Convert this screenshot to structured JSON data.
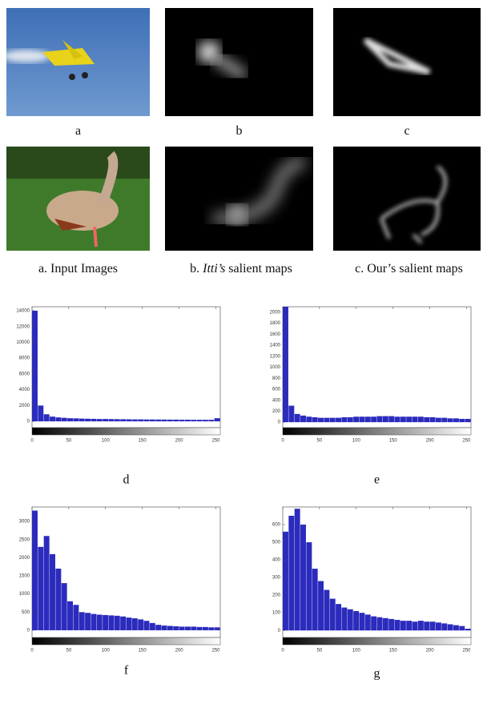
{
  "figure": {
    "row1_labels": [
      "a",
      "b",
      "c"
    ],
    "captions": [
      "a. Input Images",
      "c. Our’s salient maps"
    ],
    "itti_caption": {
      "prefix": "b. ",
      "emphasis": "Itti’s",
      "suffix": " salient maps"
    }
  },
  "chart_data": [
    {
      "type": "histogram",
      "caption": "d",
      "color": "#2b2bbd",
      "xlim": [
        0,
        256
      ],
      "xticks": [
        0,
        50,
        100,
        150,
        200,
        250
      ],
      "ylim": [
        -800,
        14500
      ],
      "yticks": [
        0,
        2000,
        4000,
        6000,
        8000,
        10000,
        12000,
        14000
      ],
      "bins": [
        0,
        8,
        16,
        24,
        32,
        40,
        48,
        56,
        64,
        72,
        80,
        88,
        96,
        104,
        112,
        120,
        128,
        136,
        144,
        152,
        160,
        168,
        176,
        184,
        192,
        200,
        208,
        216,
        224,
        232,
        240,
        248,
        256
      ],
      "values": [
        14000,
        2000,
        900,
        600,
        500,
        450,
        400,
        380,
        350,
        330,
        320,
        300,
        300,
        290,
        280,
        270,
        260,
        250,
        250,
        240,
        240,
        230,
        230,
        220,
        220,
        210,
        210,
        200,
        200,
        200,
        200,
        400
      ]
    },
    {
      "type": "histogram",
      "caption": "e",
      "color": "#2b2bbd",
      "xlim": [
        0,
        256
      ],
      "xticks": [
        0,
        50,
        100,
        150,
        200,
        250
      ],
      "ylim": [
        -100,
        2100
      ],
      "yticks": [
        0,
        200,
        400,
        600,
        800,
        1000,
        1200,
        1400,
        1600,
        1800,
        2000
      ],
      "bins": [
        0,
        8,
        16,
        24,
        32,
        40,
        48,
        56,
        64,
        72,
        80,
        88,
        96,
        104,
        112,
        120,
        128,
        136,
        144,
        152,
        160,
        168,
        176,
        184,
        192,
        200,
        208,
        216,
        224,
        232,
        240,
        248,
        256
      ],
      "values": [
        2100,
        300,
        150,
        120,
        100,
        90,
        80,
        80,
        80,
        80,
        90,
        90,
        100,
        100,
        100,
        100,
        110,
        110,
        110,
        100,
        100,
        100,
        100,
        100,
        90,
        90,
        80,
        80,
        70,
        70,
        60,
        60
      ]
    },
    {
      "type": "histogram",
      "caption": "f",
      "color": "#2b2bbd",
      "xlim": [
        0,
        256
      ],
      "xticks": [
        0,
        50,
        100,
        150,
        200,
        250
      ],
      "ylim": [
        -200,
        3400
      ],
      "yticks": [
        0,
        500,
        1000,
        1500,
        2000,
        2500,
        3000
      ],
      "bins": [
        0,
        8,
        16,
        24,
        32,
        40,
        48,
        56,
        64,
        72,
        80,
        88,
        96,
        104,
        112,
        120,
        128,
        136,
        144,
        152,
        160,
        168,
        176,
        184,
        192,
        200,
        208,
        216,
        224,
        232,
        240,
        248,
        256
      ],
      "values": [
        3300,
        2300,
        2600,
        2100,
        1700,
        1300,
        800,
        700,
        500,
        480,
        450,
        430,
        420,
        410,
        400,
        380,
        350,
        330,
        300,
        260,
        200,
        150,
        130,
        120,
        110,
        100,
        100,
        100,
        90,
        90,
        80,
        80
      ]
    },
    {
      "type": "histogram",
      "caption": "g",
      "color": "#2b2bbd",
      "xlim": [
        0,
        256
      ],
      "xticks": [
        0,
        50,
        100,
        150,
        200,
        250
      ],
      "ylim": [
        -40,
        700
      ],
      "yticks": [
        0,
        100,
        200,
        300,
        400,
        500,
        600
      ],
      "bins": [
        0,
        8,
        16,
        24,
        32,
        40,
        48,
        56,
        64,
        72,
        80,
        88,
        96,
        104,
        112,
        120,
        128,
        136,
        144,
        152,
        160,
        168,
        176,
        184,
        192,
        200,
        208,
        216,
        224,
        232,
        240,
        248,
        256
      ],
      "values": [
        560,
        650,
        690,
        600,
        500,
        350,
        280,
        230,
        180,
        150,
        130,
        120,
        110,
        100,
        90,
        80,
        75,
        70,
        65,
        60,
        55,
        55,
        50,
        55,
        50,
        50,
        45,
        40,
        35,
        30,
        25,
        10
      ]
    }
  ]
}
